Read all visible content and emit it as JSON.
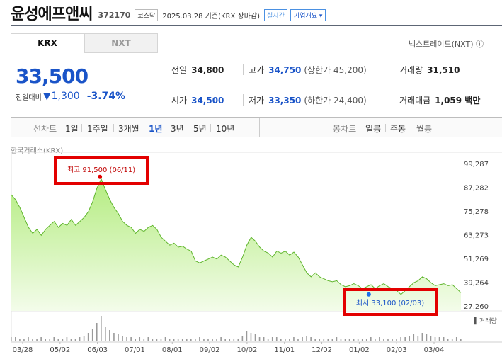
{
  "stock": {
    "name": "윤성에프앤씨",
    "code": "372170",
    "market": "코스닥",
    "date_text": "2025.03.28 기준(KRX 장마감)",
    "realtime_label": "실시간",
    "corp_overview_label": "기업개요 ▾"
  },
  "tabs": [
    {
      "label": "KRX",
      "active": true
    },
    {
      "label": "NXT",
      "active": false
    }
  ],
  "nxt_link": "넥스트레이드(NXT) ⓘ",
  "price": {
    "current": "33,500",
    "change_label": "전일대비",
    "change_icon": "down-triangle",
    "change": "1,300",
    "change_pct": "-3.74%"
  },
  "stats": {
    "prev_label": "전일",
    "prev": "34,800",
    "high_label": "고가",
    "high": "34,750",
    "upper_limit": "(상한가 45,200)",
    "volume_label": "거래량",
    "volume": "31,510",
    "open_label": "시가",
    "open": "34,500",
    "low_label": "저가",
    "low": "33,350",
    "lower_limit": "(하한가 24,400)",
    "amount_label": "거래대금",
    "amount": "1,059 백만"
  },
  "period_bar": {
    "line_label": "선차트",
    "periods": [
      "1일",
      "1주일",
      "3개월",
      "1년",
      "3년",
      "5년",
      "10년"
    ],
    "active_period": "1년",
    "candle_label": "봉차트",
    "candle_periods": [
      "일봉",
      "주봉",
      "월봉"
    ]
  },
  "chart_source": "한국거래소(KRX)",
  "volume_label": "거래량",
  "colors": {
    "accent": "#1a54c8",
    "line": "#5fb52c",
    "area": "#c6f0a0",
    "highlight_box": "#e30000",
    "high_dot": "#e30000",
    "low_dot": "#1a6ee8"
  },
  "chart_data": {
    "type": "area",
    "y_ticks": [
      "99,287",
      "87,282",
      "75,278",
      "63,273",
      "51,269",
      "39,264",
      "27,260"
    ],
    "ylim": [
      27260,
      99287
    ],
    "x_ticks": [
      "03/28",
      "05/02",
      "06/03",
      "07/01",
      "08/01",
      "09/02",
      "10/02",
      "11/01",
      "12/02",
      "01/02",
      "02/03",
      "03/04"
    ],
    "high_annotation": "최고 91,500 (06/11)",
    "low_annotation": "최저 33,100 (02/03)",
    "high": {
      "x": 0.197,
      "value": 91500
    },
    "low": {
      "x": 0.795,
      "value": 33100
    },
    "series": [
      {
        "values": [
          83500,
          81000,
          77000,
          72000,
          67000,
          64000,
          66000,
          63000,
          66000,
          68000,
          70000,
          67000,
          69000,
          68000,
          71000,
          68000,
          70000,
          72000,
          75000,
          80000,
          87000,
          91500,
          86000,
          81000,
          77000,
          74000,
          70000,
          68000,
          67000,
          64000,
          66000,
          65000,
          67000,
          68000,
          66000,
          62000,
          60000,
          58000,
          59000,
          57000,
          57500,
          56000,
          55000,
          50000,
          49000,
          50000,
          51000,
          52000,
          51000,
          53000,
          52000,
          50000,
          48000,
          47000,
          52000,
          58000,
          62000,
          60000,
          57000,
          55000,
          54000,
          52000,
          55000,
          54000,
          55000,
          53000,
          54500,
          52000,
          48000,
          44000,
          42000,
          44000,
          42000,
          41000,
          40000,
          39500,
          40000,
          38000,
          37000,
          37500,
          38500,
          37500,
          36000,
          37000,
          38000,
          36000,
          37500,
          38500,
          37000,
          36000,
          35000,
          33100,
          35000,
          37000,
          39000,
          40000,
          42000,
          41000,
          39000,
          37500,
          38000,
          38500,
          37500,
          38000,
          36000,
          34000
        ]
      }
    ],
    "volume": [
      3,
      3,
      2,
      2,
      3,
      2,
      2,
      3,
      2,
      2,
      3,
      2,
      2,
      3,
      2,
      2,
      3,
      4,
      6,
      9,
      13,
      18,
      10,
      8,
      6,
      5,
      4,
      3,
      3,
      2,
      3,
      2,
      3,
      2,
      2,
      2,
      3,
      2,
      2,
      2,
      2,
      2,
      2,
      2,
      3,
      2,
      2,
      2,
      2,
      3,
      2,
      2,
      2,
      2,
      4,
      7,
      6,
      5,
      3,
      3,
      2,
      3,
      3,
      2,
      2,
      2,
      3,
      2,
      3,
      4,
      3,
      2,
      2,
      2,
      2,
      2,
      3,
      2,
      2,
      2,
      2,
      2,
      2,
      2,
      3,
      2,
      3,
      2,
      2,
      2,
      2,
      3,
      3,
      4,
      5,
      4,
      6,
      5,
      4,
      3,
      3,
      3,
      2,
      2,
      3,
      2
    ]
  }
}
